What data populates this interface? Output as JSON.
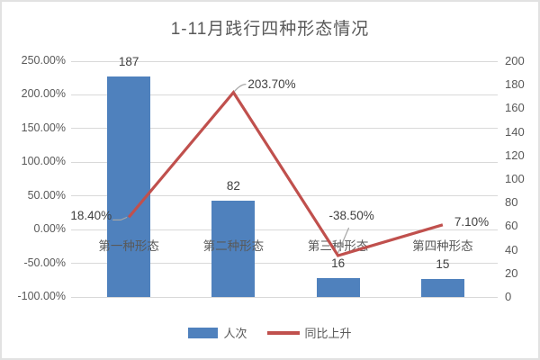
{
  "title": "1-11月践行四种形态情况",
  "chart_data": {
    "type": "combo-bar-line",
    "title": "1-11月践行四种形态情况",
    "categories": [
      "第一种形态",
      "第二种形态",
      "第三种形态",
      "第四种形态"
    ],
    "series": [
      {
        "name": "人次",
        "type": "bar",
        "axis": "right",
        "values": [
          187,
          82,
          16,
          15
        ],
        "labels": [
          "187",
          "82",
          "16",
          "15"
        ],
        "color": "#4f81bd"
      },
      {
        "name": "同比上升",
        "type": "line",
        "axis": "left",
        "values": [
          18.4,
          203.7,
          -38.5,
          7.1
        ],
        "labels": [
          "18.40%",
          "203.70%",
          "-38.50%",
          "7.10%"
        ],
        "color": "#c0504d"
      }
    ],
    "left_axis": {
      "min": -100,
      "max": 250,
      "step": 50,
      "unit": "%",
      "tick_labels": [
        "250.00%",
        "200.00%",
        "150.00%",
        "100.00%",
        "50.00%",
        "0.00%",
        "-50.00%",
        "-100.00%"
      ]
    },
    "right_axis": {
      "min": 0,
      "max": 200,
      "step": 20,
      "tick_labels": [
        "200",
        "180",
        "160",
        "140",
        "120",
        "100",
        "80",
        "60",
        "40",
        "20",
        "0"
      ]
    },
    "grid": true,
    "legend_position": "bottom"
  },
  "colors": {
    "bar": "#4f81bd",
    "line": "#c0504d",
    "text": "#595959",
    "grid": "#d9d9d9",
    "leader": "#a6a6a6",
    "border": "#e2e2e2"
  }
}
